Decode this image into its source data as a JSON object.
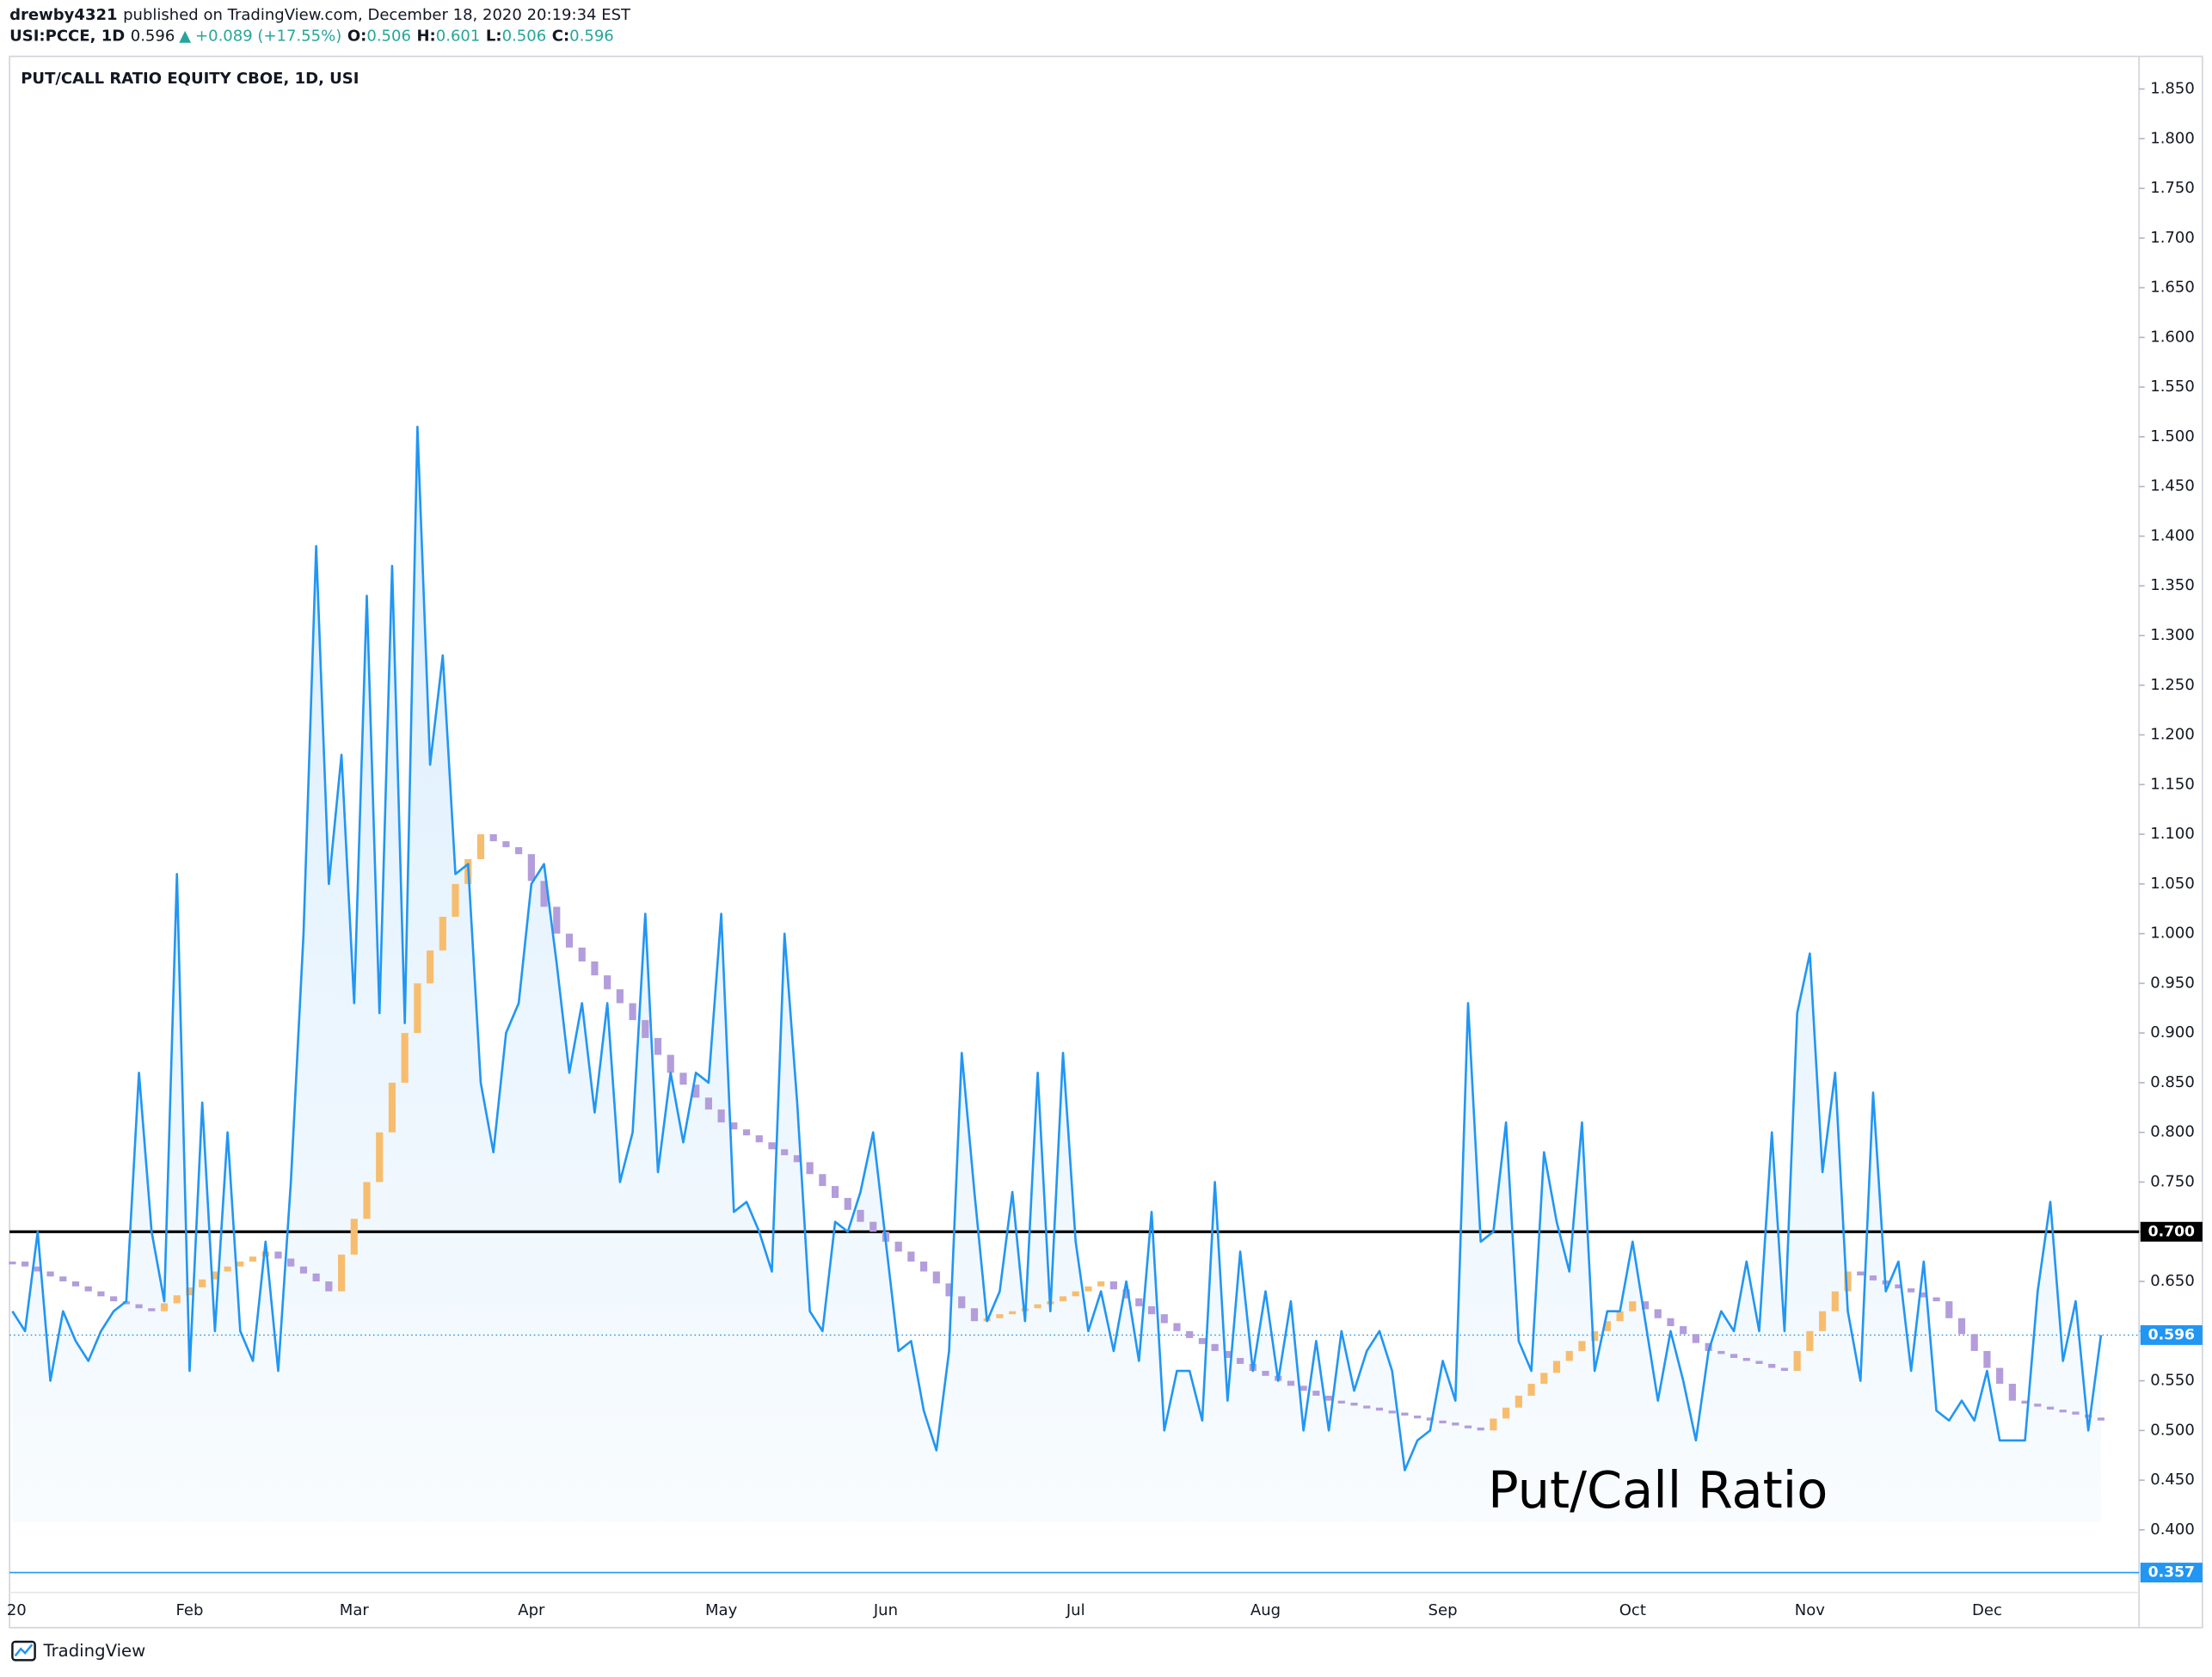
{
  "header": {
    "author": "drewby4321",
    "published": "published on TradingView.com, December 18, 2020 20:19:34 EST",
    "symbol": "USI:PCCE, 1D",
    "last": "0.596",
    "arrow": "▲",
    "change": "+0.089 (+17.55%)",
    "o_label": "O:",
    "o": "0.506",
    "h_label": "H:",
    "h": "0.601",
    "l_label": "L:",
    "l": "0.506",
    "c_label": "C:",
    "c": "0.596"
  },
  "footer": {
    "brand": "TradingView"
  },
  "chart_data": {
    "type": "line",
    "title": "PUT/CALL RATIO EQUITY CBOE, 1D, USI",
    "annotation": "Put/Call Ratio",
    "categories": [
      "20",
      null,
      null,
      null,
      null,
      null,
      null,
      null,
      null,
      null,
      null,
      null,
      null,
      null,
      "Feb",
      null,
      null,
      null,
      null,
      null,
      null,
      null,
      null,
      null,
      null,
      null,
      null,
      "Mar",
      null,
      null,
      null,
      null,
      null,
      null,
      null,
      null,
      null,
      null,
      null,
      null,
      null,
      "Apr",
      null,
      null,
      null,
      null,
      null,
      null,
      null,
      null,
      null,
      null,
      null,
      null,
      null,
      null,
      "May",
      null,
      null,
      null,
      null,
      null,
      null,
      null,
      null,
      null,
      null,
      null,
      null,
      "Jun",
      null,
      null,
      null,
      null,
      null,
      null,
      null,
      null,
      null,
      null,
      null,
      null,
      null,
      null,
      "Jul",
      null,
      null,
      null,
      null,
      null,
      null,
      null,
      null,
      null,
      null,
      null,
      null,
      null,
      null,
      "Aug",
      null,
      null,
      null,
      null,
      null,
      null,
      null,
      null,
      null,
      null,
      null,
      null,
      null,
      "Sep",
      null,
      null,
      null,
      null,
      null,
      null,
      null,
      null,
      null,
      null,
      null,
      null,
      null,
      null,
      "Oct",
      null,
      null,
      null,
      null,
      null,
      null,
      null,
      null,
      null,
      null,
      null,
      null,
      null,
      "Nov",
      null,
      null,
      null,
      null,
      null,
      null,
      null,
      null,
      null,
      null,
      null,
      null,
      null,
      "Dec",
      null,
      null,
      null,
      null,
      null,
      null,
      null,
      null,
      null
    ],
    "series": [
      {
        "color": "#2196f3",
        "values": [
          0.62,
          0.6,
          0.7,
          0.55,
          0.62,
          0.59,
          0.57,
          0.6,
          0.62,
          0.63,
          0.86,
          0.7,
          0.63,
          1.06,
          0.56,
          0.83,
          0.6,
          0.8,
          0.6,
          0.57,
          0.69,
          0.56,
          0.75,
          1.0,
          1.39,
          1.05,
          1.18,
          0.93,
          1.34,
          0.92,
          1.37,
          0.91,
          1.51,
          1.17,
          1.28,
          1.06,
          1.07,
          0.85,
          0.78,
          0.9,
          0.93,
          1.05,
          1.07,
          0.97,
          0.86,
          0.93,
          0.82,
          0.93,
          0.75,
          0.8,
          1.02,
          0.76,
          0.86,
          0.79,
          0.86,
          0.85,
          1.02,
          0.72,
          0.73,
          0.7,
          0.66,
          1.0,
          0.83,
          0.62,
          0.6,
          0.71,
          0.7,
          0.74,
          0.8,
          0.69,
          0.58,
          0.59,
          0.52,
          0.48,
          0.58,
          0.88,
          0.74,
          0.61,
          0.64,
          0.74,
          0.61,
          0.86,
          0.62,
          0.88,
          0.69,
          0.6,
          0.64,
          0.58,
          0.65,
          0.57,
          0.72,
          0.5,
          0.56,
          0.56,
          0.51,
          0.75,
          0.53,
          0.68,
          0.56,
          0.64,
          0.55,
          0.63,
          0.5,
          0.59,
          0.5,
          0.6,
          0.54,
          0.58,
          0.6,
          0.56,
          0.46,
          0.49,
          0.5,
          0.57,
          0.53,
          0.93,
          0.69,
          0.7,
          0.81,
          0.59,
          0.56,
          0.78,
          0.71,
          0.66,
          0.81,
          0.56,
          0.62,
          0.62,
          0.69,
          0.61,
          0.53,
          0.6,
          0.55,
          0.49,
          0.58,
          0.62,
          0.6,
          0.67,
          0.6,
          0.8,
          0.6,
          0.92,
          0.98,
          0.76,
          0.86,
          0.62,
          0.55,
          0.84,
          0.64,
          0.67,
          0.56,
          0.67,
          0.52,
          0.51,
          0.53,
          0.51,
          0.56,
          0.49,
          0.49,
          0.49,
          0.64,
          0.73,
          0.57,
          0.63,
          0.5,
          0.596
        ]
      },
      {
        "color": "#b39ddb",
        "up_color": "#f7bd6e",
        "values": [
          0.67,
          0.665,
          0.66,
          0.655,
          0.65,
          0.645,
          0.64,
          0.635,
          0.63,
          0.627,
          0.623,
          0.62,
          0.628,
          0.636,
          0.644,
          0.652,
          0.66,
          0.665,
          0.67,
          0.675,
          0.68,
          0.673,
          0.665,
          0.658,
          0.65,
          0.64,
          0.677,
          0.713,
          0.75,
          0.8,
          0.85,
          0.9,
          0.95,
          0.983,
          1.017,
          1.05,
          1.075,
          1.1,
          1.093,
          1.087,
          1.08,
          1.053,
          1.027,
          1.0,
          0.986,
          0.972,
          0.958,
          0.944,
          0.93,
          0.913,
          0.895,
          0.878,
          0.86,
          0.848,
          0.835,
          0.823,
          0.81,
          0.803,
          0.797,
          0.79,
          0.783,
          0.777,
          0.77,
          0.758,
          0.746,
          0.734,
          0.722,
          0.71,
          0.7,
          0.69,
          0.68,
          0.67,
          0.66,
          0.648,
          0.635,
          0.623,
          0.61,
          0.613,
          0.617,
          0.62,
          0.623,
          0.627,
          0.63,
          0.635,
          0.64,
          0.645,
          0.65,
          0.642,
          0.633,
          0.625,
          0.617,
          0.608,
          0.6,
          0.593,
          0.587,
          0.58,
          0.573,
          0.567,
          0.56,
          0.555,
          0.55,
          0.545,
          0.54,
          0.535,
          0.53,
          0.528,
          0.525,
          0.523,
          0.52,
          0.518,
          0.515,
          0.513,
          0.51,
          0.508,
          0.505,
          0.503,
          0.5,
          0.512,
          0.523,
          0.535,
          0.547,
          0.558,
          0.57,
          0.58,
          0.59,
          0.6,
          0.61,
          0.62,
          0.63,
          0.622,
          0.613,
          0.605,
          0.597,
          0.588,
          0.58,
          0.577,
          0.573,
          0.57,
          0.567,
          0.563,
          0.56,
          0.58,
          0.6,
          0.62,
          0.64,
          0.66,
          0.656,
          0.651,
          0.647,
          0.643,
          0.639,
          0.634,
          0.63,
          0.613,
          0.597,
          0.58,
          0.563,
          0.547,
          0.53,
          0.527,
          0.524,
          0.521,
          0.519,
          0.516,
          0.513,
          0.51
        ]
      }
    ],
    "ylim": [
      0.337,
      1.88
    ],
    "yticks": [
      {
        "value": 0.4,
        "label": "0.400"
      },
      {
        "value": 0.45,
        "label": "0.450"
      },
      {
        "value": 0.5,
        "label": "0.500"
      },
      {
        "value": 0.55,
        "label": "0.550"
      },
      {
        "value": 0.6,
        "label": "0.600"
      },
      {
        "value": 0.65,
        "label": "0.650"
      },
      {
        "value": 0.7,
        "label": "0.700"
      },
      {
        "value": 0.75,
        "label": "0.750"
      },
      {
        "value": 0.8,
        "label": "0.800"
      },
      {
        "value": 0.85,
        "label": "0.850"
      },
      {
        "value": 0.9,
        "label": "0.900"
      },
      {
        "value": 0.95,
        "label": "0.950"
      },
      {
        "value": 1.0,
        "label": "1.000"
      },
      {
        "value": 1.05,
        "label": "1.050"
      },
      {
        "value": 1.1,
        "label": "1.100"
      },
      {
        "value": 1.15,
        "label": "1.150"
      },
      {
        "value": 1.2,
        "label": "1.200"
      },
      {
        "value": 1.25,
        "label": "1.250"
      },
      {
        "value": 1.3,
        "label": "1.300"
      },
      {
        "value": 1.35,
        "label": "1.350"
      },
      {
        "value": 1.4,
        "label": "1.400"
      },
      {
        "value": 1.45,
        "label": "1.450"
      },
      {
        "value": 1.5,
        "label": "1.500"
      },
      {
        "value": 1.55,
        "label": "1.550"
      },
      {
        "value": 1.6,
        "label": "1.600"
      },
      {
        "value": 1.65,
        "label": "1.650"
      },
      {
        "value": 1.7,
        "label": "1.700"
      },
      {
        "value": 1.75,
        "label": "1.750"
      },
      {
        "value": 1.8,
        "label": "1.800"
      },
      {
        "value": 1.85,
        "label": "1.850"
      }
    ],
    "hlines": [
      {
        "value": 0.7,
        "label": "0.700",
        "color": "#000000",
        "style": "bold"
      },
      {
        "value": 0.596,
        "label": "0.596",
        "color": "#2196f3",
        "style": "dotted"
      },
      {
        "value": 0.357,
        "label": "0.357",
        "color": "#2196f3",
        "style": "solid"
      }
    ],
    "grid": false
  }
}
